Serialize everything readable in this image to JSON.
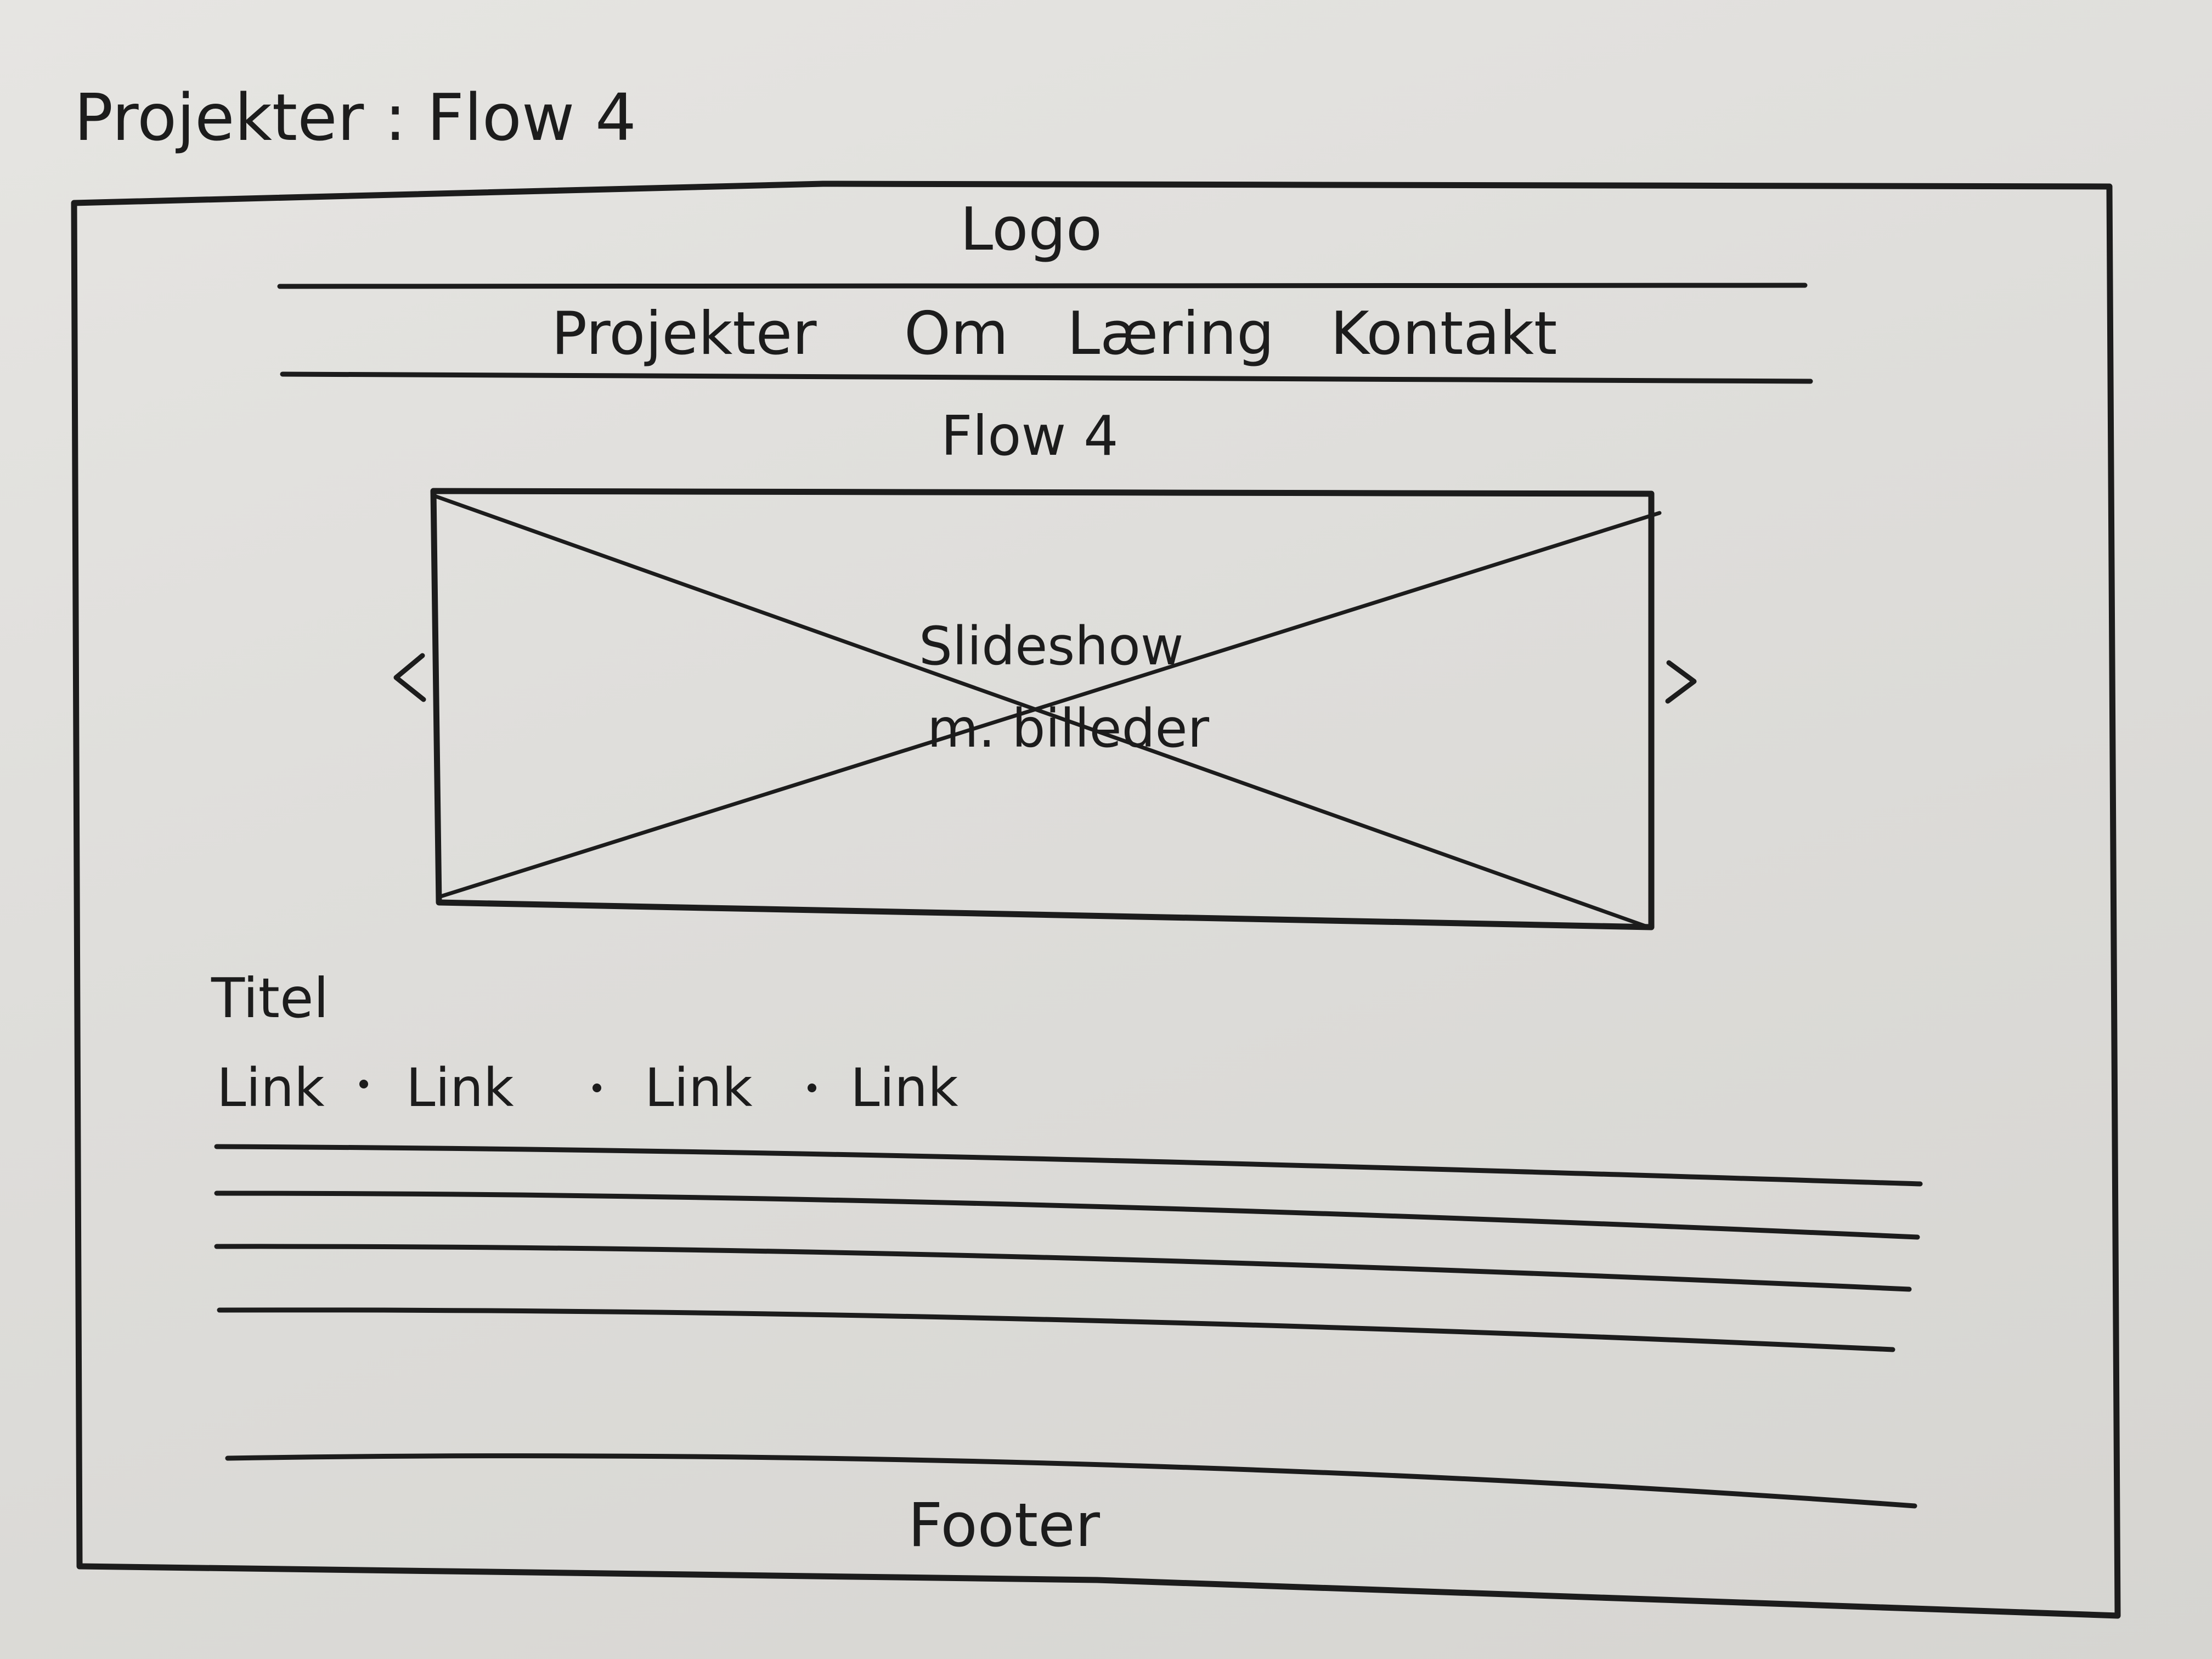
{
  "sheet": {
    "title": "Projekter : Flow 4"
  },
  "wireframe": {
    "logo": "Logo",
    "nav": [
      "Projekter",
      "Om",
      "Læring",
      "Kontakt"
    ],
    "page_heading": "Flow 4",
    "slideshow": {
      "line1": "Slideshow",
      "line2": "m. billeder",
      "prev_icon": "chevron-left-icon",
      "next_icon": "chevron-right-icon"
    },
    "content": {
      "title": "Titel",
      "links": [
        "Link",
        "Link",
        "Link",
        "Link"
      ],
      "text_line_count": 4
    },
    "footer": "Footer"
  },
  "colors": {
    "ink": "#1c1c1c",
    "paper": "#e3e2df"
  }
}
